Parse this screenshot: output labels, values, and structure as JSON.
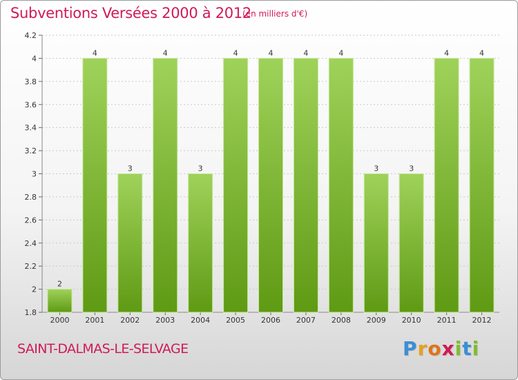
{
  "header": {
    "title": "Subventions Versées 2000 à 2012",
    "unit_note": "(en milliers d'€)"
  },
  "footer": {
    "commune": "SAINT-DALMAS-LE-SELVAGE",
    "logo": {
      "letters": [
        "P",
        "r",
        "o",
        "x",
        "i",
        "t",
        "i"
      ],
      "colors": [
        "#3a8fd6",
        "#e5a21c",
        "#e07318",
        "#d01a55",
        "#7fbf2a",
        "#3a8fd6",
        "#7fbf2a"
      ]
    }
  },
  "colors": {
    "title": "#d01a55",
    "bar_light": "#9fd25a",
    "bar_dark": "#5f9a14",
    "grid": "#c8c8c8",
    "axis_text": "#333333"
  },
  "chart_data": {
    "type": "bar",
    "categories": [
      "2000",
      "2001",
      "2002",
      "2003",
      "2004",
      "2005",
      "2006",
      "2007",
      "2008",
      "2009",
      "2010",
      "2011",
      "2012"
    ],
    "values": [
      2,
      4,
      3,
      4,
      3,
      4,
      4,
      4,
      4,
      3,
      3,
      4,
      4
    ],
    "data_labels": [
      "2",
      "4",
      "3",
      "4",
      "3",
      "4",
      "4",
      "4",
      "4",
      "3",
      "3",
      "4",
      "4"
    ],
    "y_ticks": [
      "1.8",
      "2",
      "2.2",
      "2.4",
      "2.6",
      "2.8",
      "3",
      "3.2",
      "3.4",
      "3.6",
      "3.8",
      "4",
      "4.2"
    ],
    "ylim": [
      1.8,
      4.2
    ],
    "grid": true,
    "legend": "none"
  }
}
